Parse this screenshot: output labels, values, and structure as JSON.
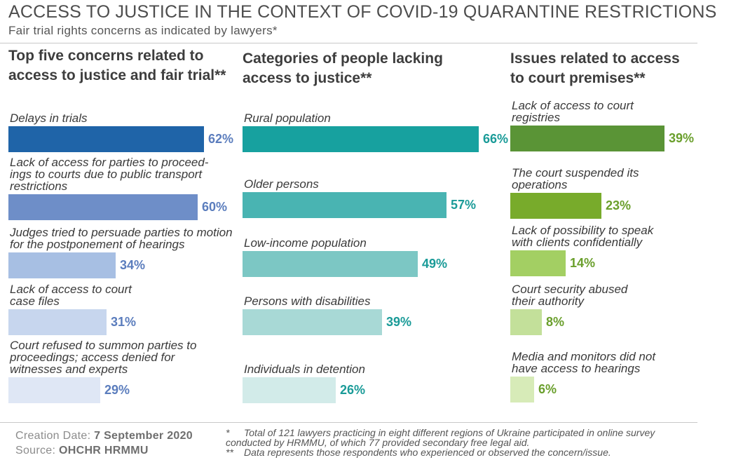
{
  "header": {
    "title": "ACCESS TO JUSTICE IN THE CONTEXT OF COVID-19 QUARANTINE RESTRICTIONS",
    "subtitle": "Fair trial rights concerns as indicated by lawyers*"
  },
  "chart_data": [
    {
      "type": "bar",
      "orientation": "horizontal",
      "title": "Top five concerns related to access to justice and fair trial**",
      "categories": [
        "Delays in trials",
        "Lack of access for parties to proceed-ings to courts due to public transport restrictions",
        "Judges tried to persuade parties to motion for the postponement of hearings",
        "Lack of access to court case files",
        "Court refused to summon parties to proceedings; access denied for witnesses and experts"
      ],
      "label_lines": [
        [
          "Delays in trials"
        ],
        [
          "Lack of access for parties to proceed-",
          "ings to courts due to public transport",
          "restrictions"
        ],
        [
          "Judges tried to persuade parties to motion",
          "for the postponement of hearings"
        ],
        [
          "Lack of access to court",
          "case files"
        ],
        [
          "Court refused to summon parties to",
          "proceedings; access denied for",
          "witnesses and experts"
        ]
      ],
      "values": [
        62,
        60,
        34,
        31,
        29
      ],
      "value_labels": [
        "62%",
        "60%",
        "34%",
        "31%",
        "29%"
      ],
      "colors": [
        "#1f64a8",
        "#6e8ec8",
        "#a7bfe3",
        "#c7d6ee",
        "#dfe7f5"
      ],
      "label_color": "#5b7dbd",
      "xlim": [
        0,
        100
      ]
    },
    {
      "type": "bar",
      "orientation": "horizontal",
      "title": "Categories of people lacking access to justice**",
      "categories": [
        "Rural population",
        "Older persons",
        "Low-income population",
        "Persons with disabilities",
        "Individuals in detention"
      ],
      "label_lines": [
        [
          "Rural population"
        ],
        [
          "Older persons"
        ],
        [
          "Low-income population"
        ],
        [
          "Persons with disabilities"
        ],
        [
          "Individuals in detention"
        ]
      ],
      "values": [
        66,
        57,
        49,
        39,
        26
      ],
      "value_labels": [
        "66%",
        "57%",
        "49%",
        "39%",
        "26%"
      ],
      "colors": [
        "#17a19f",
        "#49b4b2",
        "#7cc7c4",
        "#a8d9d6",
        "#d2ebe9"
      ],
      "label_color": "#1a9b98",
      "xlim": [
        0,
        100
      ]
    },
    {
      "type": "bar",
      "orientation": "horizontal",
      "title": "Issues related to access to court premises**",
      "categories": [
        "Lack of access to court registries",
        "The court suspended its operations",
        "Lack of possibility to speak with clients confidentially",
        "Court security abused their authority",
        "Media and monitors did not have access to hearings"
      ],
      "label_lines": [
        [
          "Lack of access to court",
          "registries"
        ],
        [
          "The court suspended its",
          "operations"
        ],
        [
          "Lack of possibility to speak",
          "with clients confidentially"
        ],
        [
          "Court security abused",
          "their authority"
        ],
        [
          "Media and monitors did not",
          "have access to hearings"
        ]
      ],
      "values": [
        39,
        23,
        14,
        8,
        6
      ],
      "value_labels": [
        "39%",
        "23%",
        "14%",
        "8%",
        "6%"
      ],
      "colors": [
        "#5a9436",
        "#78ab2b",
        "#a3cf63",
        "#c3e09a",
        "#d7ebb8"
      ],
      "label_color": "#6a9f2c",
      "xlim": [
        0,
        100
      ]
    }
  ],
  "footer": {
    "creation_label": "Creation Date:",
    "creation_date": "7 September 2020",
    "source_label": "Source:",
    "source": "OHCHR HRMMU",
    "notes": [
      {
        "mark": "*",
        "lines": [
          "Total of 121 lawyers practicing in eight different regions of Ukraine participated in online survey",
          "conducted by HRMMU, of which 77  provided secondary free legal aid."
        ]
      },
      {
        "mark": "**",
        "lines": [
          "Data represents those respondents who experienced or observed the concern/issue."
        ]
      }
    ]
  }
}
